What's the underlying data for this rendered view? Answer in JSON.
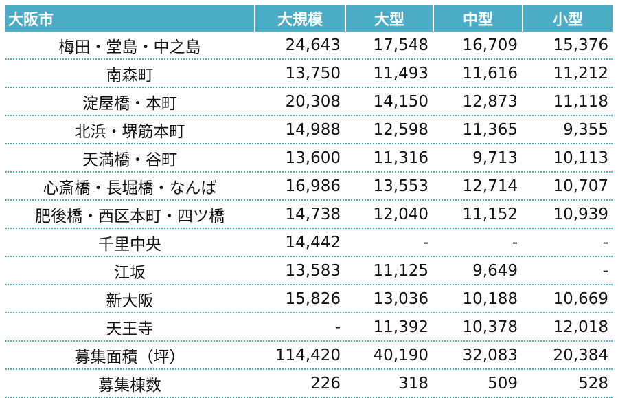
{
  "table": {
    "header": [
      "大阪市",
      "大規模",
      "大型",
      "中型",
      "小型"
    ],
    "rows": [
      [
        "梅田・堂島・中之島",
        "24,643",
        "17,548",
        "16,709",
        "15,376"
      ],
      [
        "南森町",
        "13,750",
        "11,493",
        "11,616",
        "11,212"
      ],
      [
        "淀屋橋・本町",
        "20,308",
        "14,150",
        "12,873",
        "11,118"
      ],
      [
        "北浜・堺筋本町",
        "14,988",
        "12,598",
        "11,365",
        "9,355"
      ],
      [
        "天満橋・谷町",
        "13,600",
        "11,316",
        "9,713",
        "10,113"
      ],
      [
        "心斎橋・長堀橋・なんば",
        "16,986",
        "13,553",
        "12,714",
        "10,707"
      ],
      [
        "肥後橋・西区本町・四ツ橋",
        "14,738",
        "12,040",
        "11,152",
        "10,939"
      ],
      [
        "千里中央",
        "14,442",
        "-",
        "-",
        "-"
      ],
      [
        "江坂",
        "13,583",
        "11,125",
        "9,649",
        "-"
      ],
      [
        "新大阪",
        "15,826",
        "13,036",
        "10,188",
        "10,669"
      ],
      [
        "天王寺",
        "-",
        "11,392",
        "10,378",
        "12,018"
      ],
      [
        "募集面積（坪）",
        "114,420",
        "40,190",
        "32,083",
        "20,384"
      ],
      [
        "募集棟数",
        "226",
        "318",
        "509",
        "528"
      ]
    ]
  },
  "colors": {
    "header_bg": "#4bacc6",
    "header_text": "#ffffff",
    "divider": "#4bacc6"
  }
}
